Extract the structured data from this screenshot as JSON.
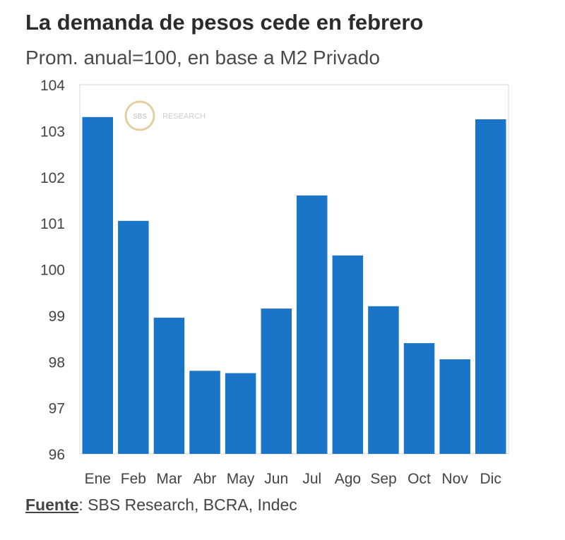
{
  "chart_data": {
    "type": "bar",
    "title": "La demanda de pesos cede en febrero",
    "subtitle": "Prom. anual=100, en base a M2 Privado",
    "categories": [
      "Ene",
      "Feb",
      "Mar",
      "Abr",
      "May",
      "Jun",
      "Jul",
      "Ago",
      "Sep",
      "Oct",
      "Nov",
      "Dic"
    ],
    "values": [
      103.3,
      101.05,
      98.95,
      97.8,
      97.75,
      99.15,
      101.6,
      100.3,
      99.2,
      98.4,
      98.05,
      103.25
    ],
    "ylim": [
      96,
      104
    ],
    "yticks": [
      96,
      97,
      98,
      99,
      100,
      101,
      102,
      103,
      104
    ],
    "bar_color": "#1a75c9",
    "grid": false
  },
  "watermark": {
    "logo_text": "SBS",
    "text": "RESEARCH"
  },
  "source": {
    "label": "Fuente",
    "separator": ":",
    "text": " SBS Research, BCRA, Indec"
  }
}
